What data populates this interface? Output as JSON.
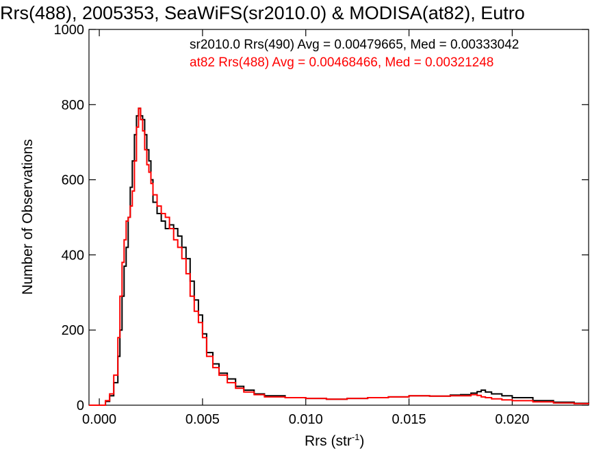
{
  "chart_data": {
    "type": "line",
    "title": "Rrs(488), 2005353, SeaWiFS(sr2010.0) & MODISA(at82), Eutro",
    "xlabel": "Rrs (str",
    "xlabel_sup": "-1",
    "xlabel_close": ")",
    "ylabel": "Number of Observations",
    "xlim": [
      -0.0005,
      0.0237
    ],
    "ylim": [
      0,
      1000
    ],
    "xticks": [
      0.0,
      0.005,
      0.01,
      0.015,
      0.02
    ],
    "xtick_labels": [
      "0.000",
      "0.005",
      "0.010",
      "0.015",
      "0.020"
    ],
    "yticks": [
      0,
      200,
      400,
      600,
      800,
      1000
    ],
    "ytick_labels": [
      "0",
      "200",
      "400",
      "600",
      "800",
      "1000"
    ],
    "grid": false,
    "legend_position": "top-right",
    "series": [
      {
        "name": "sr2010.0 Rrs(490) Avg = 0.00479665, Med = 0.00333042",
        "color": "#000000",
        "x": [
          -0.0005,
          0.0,
          0.0003,
          0.0005,
          0.0007,
          0.0009,
          0.001,
          0.0011,
          0.0012,
          0.0013,
          0.0014,
          0.0015,
          0.0016,
          0.0017,
          0.0018,
          0.0019,
          0.002,
          0.0021,
          0.0022,
          0.0023,
          0.0024,
          0.0025,
          0.0026,
          0.0028,
          0.003,
          0.0032,
          0.0034,
          0.0036,
          0.0038,
          0.004,
          0.0042,
          0.0044,
          0.0046,
          0.0048,
          0.005,
          0.0052,
          0.0055,
          0.0058,
          0.0062,
          0.0066,
          0.007,
          0.0075,
          0.008,
          0.009,
          0.01,
          0.011,
          0.012,
          0.013,
          0.014,
          0.015,
          0.016,
          0.017,
          0.0175,
          0.018,
          0.0183,
          0.0185,
          0.0187,
          0.019,
          0.0195,
          0.02,
          0.021,
          0.022,
          0.023,
          0.0237
        ],
        "y": [
          0,
          0,
          10,
          25,
          60,
          130,
          200,
          290,
          370,
          420,
          500,
          580,
          650,
          720,
          770,
          790,
          770,
          760,
          720,
          680,
          650,
          600,
          540,
          510,
          490,
          470,
          480,
          470,
          450,
          420,
          390,
          330,
          280,
          240,
          190,
          140,
          110,
          85,
          70,
          50,
          40,
          30,
          25,
          20,
          18,
          16,
          18,
          20,
          22,
          25,
          24,
          27,
          28,
          32,
          36,
          40,
          35,
          30,
          25,
          20,
          12,
          8,
          5,
          3
        ]
      },
      {
        "name": "at82 Rrs(488) Avg = 0.00468466, Med = 0.00321248",
        "color": "#ff0000",
        "x": [
          -0.0005,
          0.0,
          0.0003,
          0.0005,
          0.0007,
          0.0009,
          0.001,
          0.0011,
          0.0012,
          0.0013,
          0.0014,
          0.0015,
          0.0016,
          0.0017,
          0.0018,
          0.0019,
          0.002,
          0.0021,
          0.0022,
          0.0023,
          0.0024,
          0.0025,
          0.0026,
          0.0028,
          0.003,
          0.0032,
          0.0034,
          0.0036,
          0.0038,
          0.004,
          0.0042,
          0.0044,
          0.0046,
          0.0048,
          0.005,
          0.0052,
          0.0055,
          0.0058,
          0.0062,
          0.0066,
          0.007,
          0.0075,
          0.008,
          0.009,
          0.01,
          0.011,
          0.012,
          0.013,
          0.014,
          0.015,
          0.016,
          0.017,
          0.0175,
          0.018,
          0.0183,
          0.0185,
          0.0187,
          0.019,
          0.0195,
          0.02,
          0.021,
          0.022,
          0.023,
          0.0237
        ],
        "y": [
          0,
          0,
          12,
          30,
          80,
          180,
          290,
          380,
          440,
          490,
          500,
          530,
          570,
          650,
          740,
          790,
          760,
          730,
          680,
          640,
          620,
          590,
          560,
          530,
          510,
          500,
          470,
          440,
          420,
          390,
          350,
          290,
          250,
          220,
          180,
          130,
          100,
          80,
          60,
          45,
          35,
          28,
          22,
          20,
          18,
          16,
          18,
          20,
          22,
          25,
          24,
          25,
          25,
          28,
          26,
          22,
          20,
          17,
          14,
          12,
          9,
          6,
          4,
          3
        ]
      }
    ]
  }
}
